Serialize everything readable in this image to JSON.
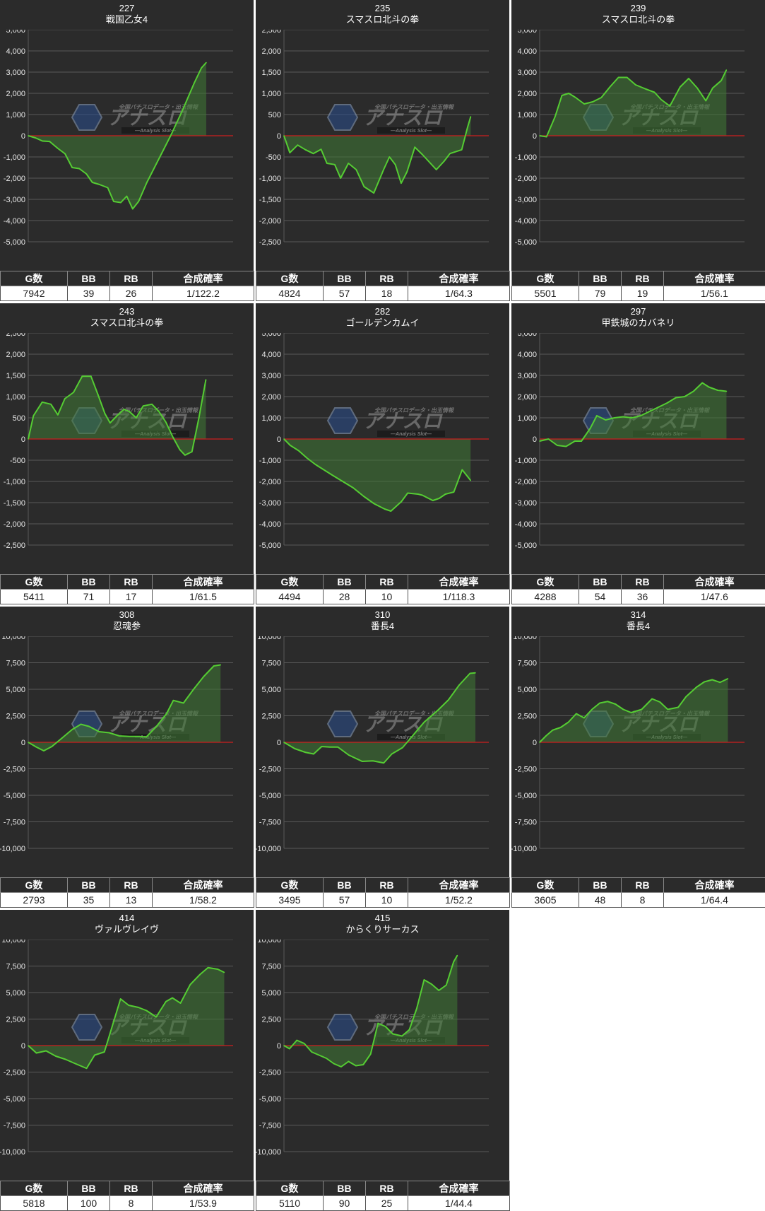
{
  "colors": {
    "panel_bg": "#2b2b2b",
    "grid": "#5a5a5a",
    "zero_line": "#cc1f1f",
    "series_line": "#55cc33",
    "series_fill": "#3f7a35"
  },
  "table_headers": [
    "G数",
    "BB",
    "RB",
    "合成確率"
  ],
  "watermark": {
    "title": "アナスロ",
    "sub": "—Analysis Slot—",
    "caption": "全国パチスロデータ・出玉情報"
  },
  "chart_data": [
    {
      "type": "line",
      "id": "227",
      "title": "戦国乙女4",
      "ylim": [
        -5000,
        5000
      ],
      "yticks": [
        5000,
        4000,
        3000,
        2000,
        1000,
        0,
        -1000,
        -2000,
        -3000,
        -4000,
        -5000
      ],
      "xlim": [
        0,
        7942
      ],
      "points": [
        [
          0,
          0
        ],
        [
          300,
          -100
        ],
        [
          600,
          -250
        ],
        [
          900,
          -270
        ],
        [
          1250,
          -600
        ],
        [
          1550,
          -850
        ],
        [
          1850,
          -1500
        ],
        [
          2150,
          -1550
        ],
        [
          2450,
          -1800
        ],
        [
          2700,
          -2200
        ],
        [
          3000,
          -2300
        ],
        [
          3350,
          -2450
        ],
        [
          3600,
          -3100
        ],
        [
          3900,
          -3150
        ],
        [
          4150,
          -2850
        ],
        [
          4400,
          -3450
        ],
        [
          4650,
          -3100
        ],
        [
          5000,
          -2200
        ],
        [
          5500,
          -1100
        ],
        [
          6000,
          0
        ],
        [
          6500,
          1200
        ],
        [
          7000,
          2500
        ],
        [
          7300,
          3200
        ],
        [
          7500,
          3450
        ]
      ],
      "stats": {
        "g": "7942",
        "bb": "39",
        "rb": "26",
        "rate": "1/122.2"
      }
    },
    {
      "type": "line",
      "id": "235",
      "title": "スマスロ北斗の拳",
      "ylim": [
        -2500,
        2500
      ],
      "yticks": [
        2500,
        2000,
        1500,
        1000,
        500,
        0,
        -500,
        -1000,
        -1500,
        -2000,
        -2500
      ],
      "xlim": [
        0,
        4824
      ],
      "points": [
        [
          0,
          0
        ],
        [
          150,
          -400
        ],
        [
          350,
          -220
        ],
        [
          550,
          -330
        ],
        [
          750,
          -420
        ],
        [
          950,
          -320
        ],
        [
          1100,
          -650
        ],
        [
          1300,
          -680
        ],
        [
          1450,
          -1000
        ],
        [
          1650,
          -650
        ],
        [
          1850,
          -800
        ],
        [
          2050,
          -1200
        ],
        [
          2300,
          -1350
        ],
        [
          2550,
          -800
        ],
        [
          2700,
          -500
        ],
        [
          2850,
          -680
        ],
        [
          3000,
          -1120
        ],
        [
          3150,
          -850
        ],
        [
          3350,
          -270
        ],
        [
          3550,
          -450
        ],
        [
          3750,
          -650
        ],
        [
          3900,
          -800
        ],
        [
          4100,
          -600
        ],
        [
          4250,
          -420
        ],
        [
          4550,
          -330
        ],
        [
          4700,
          200
        ],
        [
          4780,
          450
        ]
      ],
      "stats": {
        "g": "4824",
        "bb": "57",
        "rb": "18",
        "rate": "1/64.3"
      }
    },
    {
      "type": "line",
      "id": "239",
      "title": "スマスロ北斗の拳",
      "ylim": [
        -5000,
        5000
      ],
      "yticks": [
        5000,
        4000,
        3000,
        2000,
        1000,
        0,
        -1000,
        -2000,
        -3000,
        -4000,
        -5000
      ],
      "xlim": [
        0,
        5501
      ],
      "points": [
        [
          0,
          0
        ],
        [
          200,
          -50
        ],
        [
          450,
          900
        ],
        [
          650,
          1900
        ],
        [
          850,
          2000
        ],
        [
          1050,
          1800
        ],
        [
          1300,
          1500
        ],
        [
          1550,
          1600
        ],
        [
          1800,
          1800
        ],
        [
          2050,
          2300
        ],
        [
          2300,
          2750
        ],
        [
          2550,
          2750
        ],
        [
          2800,
          2400
        ],
        [
          3100,
          2200
        ],
        [
          3350,
          2050
        ],
        [
          3550,
          1700
        ],
        [
          3800,
          1400
        ],
        [
          4100,
          2300
        ],
        [
          4350,
          2700
        ],
        [
          4600,
          2250
        ],
        [
          4850,
          1650
        ],
        [
          5050,
          2250
        ],
        [
          5300,
          2600
        ],
        [
          5450,
          3100
        ]
      ],
      "stats": {
        "g": "5501",
        "bb": "79",
        "rb": "19",
        "rate": "1/56.1"
      }
    },
    {
      "type": "line",
      "id": "243",
      "title": "スマスロ北斗の拳",
      "ylim": [
        -2500,
        2500
      ],
      "yticks": [
        2500,
        2000,
        1500,
        1000,
        500,
        0,
        -500,
        -1000,
        -1500,
        -2000,
        -2500
      ],
      "xlim": [
        0,
        5411
      ],
      "points": [
        [
          0,
          0
        ],
        [
          150,
          550
        ],
        [
          400,
          870
        ],
        [
          650,
          820
        ],
        [
          850,
          570
        ],
        [
          1050,
          950
        ],
        [
          1300,
          1100
        ],
        [
          1550,
          1480
        ],
        [
          1800,
          1480
        ],
        [
          2000,
          1050
        ],
        [
          2200,
          600
        ],
        [
          2350,
          380
        ],
        [
          2550,
          550
        ],
        [
          2750,
          700
        ],
        [
          2900,
          650
        ],
        [
          3100,
          500
        ],
        [
          3300,
          780
        ],
        [
          3550,
          820
        ],
        [
          3750,
          650
        ],
        [
          3950,
          400
        ],
        [
          4150,
          50
        ],
        [
          4350,
          -250
        ],
        [
          4500,
          -380
        ],
        [
          4700,
          -300
        ],
        [
          4900,
          500
        ],
        [
          5100,
          1400
        ]
      ],
      "stats": {
        "g": "5411",
        "bb": "71",
        "rb": "17",
        "rate": "1/61.5"
      }
    },
    {
      "type": "line",
      "id": "282",
      "title": "ゴールデンカムイ",
      "ylim": [
        -5000,
        5000
      ],
      "yticks": [
        5000,
        4000,
        3000,
        2000,
        1000,
        0,
        -1000,
        -2000,
        -3000,
        -4000,
        -5000
      ],
      "xlim": [
        0,
        4494
      ],
      "points": [
        [
          0,
          0
        ],
        [
          150,
          -300
        ],
        [
          350,
          -550
        ],
        [
          550,
          -900
        ],
        [
          750,
          -1200
        ],
        [
          950,
          -1450
        ],
        [
          1150,
          -1700
        ],
        [
          1400,
          -2000
        ],
        [
          1650,
          -2300
        ],
        [
          1900,
          -2700
        ],
        [
          2150,
          -3050
        ],
        [
          2400,
          -3300
        ],
        [
          2550,
          -3400
        ],
        [
          2800,
          -2950
        ],
        [
          2950,
          -2550
        ],
        [
          3200,
          -2600
        ],
        [
          3300,
          -2650
        ],
        [
          3550,
          -2900
        ],
        [
          3700,
          -2800
        ],
        [
          3850,
          -2600
        ],
        [
          4050,
          -2500
        ],
        [
          4250,
          -1450
        ],
        [
          4450,
          -1950
        ]
      ],
      "stats": {
        "g": "4494",
        "bb": "28",
        "rb": "10",
        "rate": "1/118.3"
      }
    },
    {
      "type": "line",
      "id": "297",
      "title": "甲鉄城のカバネリ",
      "ylim": [
        -5000,
        5000
      ],
      "yticks": [
        5000,
        4000,
        3000,
        2000,
        1000,
        0,
        -1000,
        -2000,
        -3000,
        -4000,
        -5000
      ],
      "xlim": [
        0,
        4288
      ],
      "points": [
        [
          0,
          -100
        ],
        [
          200,
          0
        ],
        [
          400,
          -300
        ],
        [
          600,
          -350
        ],
        [
          800,
          -100
        ],
        [
          950,
          -100
        ],
        [
          1150,
          500
        ],
        [
          1300,
          1100
        ],
        [
          1500,
          900
        ],
        [
          1700,
          1000
        ],
        [
          1900,
          1050
        ],
        [
          2100,
          1000
        ],
        [
          2300,
          1100
        ],
        [
          2500,
          1300
        ],
        [
          2700,
          1500
        ],
        [
          2900,
          1700
        ],
        [
          3100,
          1950
        ],
        [
          3300,
          2000
        ],
        [
          3500,
          2250
        ],
        [
          3700,
          2650
        ],
        [
          3850,
          2450
        ],
        [
          4050,
          2300
        ],
        [
          4250,
          2250
        ]
      ],
      "stats": {
        "g": "4288",
        "bb": "54",
        "rb": "36",
        "rate": "1/47.6"
      }
    },
    {
      "type": "line",
      "id": "308",
      "title": "忍魂参",
      "ylim": [
        -10000,
        10000
      ],
      "yticks": [
        10000,
        7500,
        5000,
        2500,
        0,
        -2500,
        -5000,
        -7500,
        -10000
      ],
      "xlim": [
        0,
        2793
      ],
      "points": [
        [
          0,
          0
        ],
        [
          120,
          -450
        ],
        [
          230,
          -800
        ],
        [
          350,
          -400
        ],
        [
          500,
          400
        ],
        [
          650,
          1200
        ],
        [
          780,
          1700
        ],
        [
          900,
          1500
        ],
        [
          1050,
          1000
        ],
        [
          1200,
          900
        ],
        [
          1350,
          600
        ],
        [
          1500,
          550
        ],
        [
          1650,
          550
        ],
        [
          1750,
          500
        ],
        [
          1900,
          1500
        ],
        [
          2050,
          2700
        ],
        [
          2150,
          3950
        ],
        [
          2300,
          3700
        ],
        [
          2450,
          5000
        ],
        [
          2600,
          6200
        ],
        [
          2750,
          7200
        ],
        [
          2850,
          7300
        ]
      ],
      "stats": {
        "g": "2793",
        "bb": "35",
        "rb": "13",
        "rate": "1/58.2"
      }
    },
    {
      "type": "line",
      "id": "310",
      "title": "番長4",
      "ylim": [
        -10000,
        10000
      ],
      "yticks": [
        10000,
        7500,
        5000,
        2500,
        0,
        -2500,
        -5000,
        -7500,
        -10000
      ],
      "xlim": [
        0,
        3495
      ],
      "points": [
        [
          0,
          0
        ],
        [
          200,
          -600
        ],
        [
          400,
          -950
        ],
        [
          550,
          -1100
        ],
        [
          700,
          -400
        ],
        [
          850,
          -450
        ],
        [
          1000,
          -450
        ],
        [
          1200,
          -1200
        ],
        [
          1450,
          -1800
        ],
        [
          1650,
          -1750
        ],
        [
          1850,
          -1950
        ],
        [
          2000,
          -1100
        ],
        [
          2200,
          -500
        ],
        [
          2400,
          700
        ],
        [
          2600,
          1900
        ],
        [
          2850,
          3000
        ],
        [
          3050,
          4000
        ],
        [
          3250,
          5400
        ],
        [
          3450,
          6500
        ],
        [
          3550,
          6550
        ]
      ],
      "stats": {
        "g": "3495",
        "bb": "57",
        "rb": "10",
        "rate": "1/52.2"
      }
    },
    {
      "type": "line",
      "id": "314",
      "title": "番長4",
      "ylim": [
        -10000,
        10000
      ],
      "yticks": [
        10000,
        7500,
        5000,
        2500,
        0,
        -2500,
        -5000,
        -7500,
        -10000
      ],
      "xlim": [
        0,
        3605
      ],
      "points": [
        [
          0,
          0
        ],
        [
          120,
          600
        ],
        [
          250,
          1150
        ],
        [
          400,
          1400
        ],
        [
          550,
          1900
        ],
        [
          700,
          2700
        ],
        [
          850,
          2300
        ],
        [
          1000,
          3100
        ],
        [
          1150,
          3700
        ],
        [
          1300,
          3850
        ],
        [
          1450,
          3600
        ],
        [
          1600,
          3100
        ],
        [
          1750,
          2800
        ],
        [
          1950,
          3100
        ],
        [
          2150,
          4100
        ],
        [
          2300,
          3800
        ],
        [
          2450,
          3100
        ],
        [
          2650,
          3300
        ],
        [
          2800,
          4300
        ],
        [
          3000,
          5200
        ],
        [
          3150,
          5700
        ],
        [
          3300,
          5900
        ],
        [
          3450,
          5650
        ],
        [
          3600,
          6000
        ]
      ],
      "stats": {
        "g": "3605",
        "bb": "48",
        "rb": "8",
        "rate": "1/64.4"
      }
    },
    {
      "type": "line",
      "id": "414",
      "title": "ヴァルヴレイヴ",
      "ylim": [
        -10000,
        10000
      ],
      "yticks": [
        10000,
        7500,
        5000,
        2500,
        0,
        -2500,
        -5000,
        -7500,
        -10000
      ],
      "xlim": [
        0,
        5818
      ],
      "points": [
        [
          0,
          0
        ],
        [
          250,
          -700
        ],
        [
          550,
          -500
        ],
        [
          850,
          -1000
        ],
        [
          1150,
          -1300
        ],
        [
          1450,
          -1700
        ],
        [
          1800,
          -2150
        ],
        [
          2050,
          -900
        ],
        [
          2350,
          -600
        ],
        [
          2600,
          1900
        ],
        [
          2850,
          4400
        ],
        [
          3100,
          3800
        ],
        [
          3400,
          3600
        ],
        [
          3650,
          3300
        ],
        [
          3950,
          2700
        ],
        [
          4250,
          4150
        ],
        [
          4450,
          4500
        ],
        [
          4700,
          4000
        ],
        [
          5000,
          5750
        ],
        [
          5300,
          6700
        ],
        [
          5550,
          7350
        ],
        [
          5850,
          7200
        ],
        [
          6050,
          6900
        ]
      ],
      "stats": {
        "g": "5818",
        "bb": "100",
        "rb": "8",
        "rate": "1/53.9"
      }
    },
    {
      "type": "line",
      "id": "415",
      "title": "からくりサーカス",
      "ylim": [
        -10000,
        10000
      ],
      "yticks": [
        10000,
        7500,
        5000,
        2500,
        0,
        -2500,
        -5000,
        -7500,
        -10000
      ],
      "xlim": [
        0,
        5110
      ],
      "points": [
        [
          0,
          0
        ],
        [
          150,
          -300
        ],
        [
          350,
          500
        ],
        [
          550,
          200
        ],
        [
          750,
          -600
        ],
        [
          950,
          -900
        ],
        [
          1150,
          -1200
        ],
        [
          1350,
          -1700
        ],
        [
          1550,
          -2000
        ],
        [
          1750,
          -1500
        ],
        [
          1950,
          -1900
        ],
        [
          2150,
          -1800
        ],
        [
          2350,
          -800
        ],
        [
          2550,
          2100
        ],
        [
          2750,
          1800
        ],
        [
          2950,
          1100
        ],
        [
          3200,
          900
        ],
        [
          3400,
          1500
        ],
        [
          3600,
          3500
        ],
        [
          3800,
          6200
        ],
        [
          4000,
          5800
        ],
        [
          4200,
          5200
        ],
        [
          4400,
          5700
        ],
        [
          4600,
          7900
        ],
        [
          4700,
          8500
        ]
      ],
      "stats": {
        "g": "5110",
        "bb": "90",
        "rb": "25",
        "rate": "1/44.4"
      }
    }
  ]
}
